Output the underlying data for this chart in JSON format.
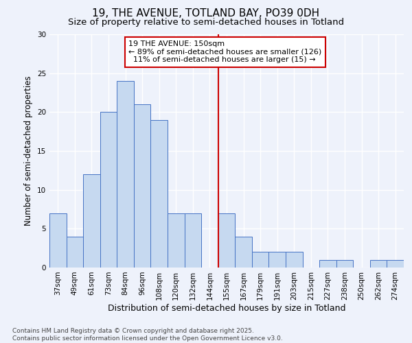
{
  "title1": "19, THE AVENUE, TOTLAND BAY, PO39 0DH",
  "title2": "Size of property relative to semi-detached houses in Totland",
  "xlabel": "Distribution of semi-detached houses by size in Totland",
  "ylabel": "Number of semi-detached properties",
  "bin_labels": [
    "37sqm",
    "49sqm",
    "61sqm",
    "73sqm",
    "84sqm",
    "96sqm",
    "108sqm",
    "120sqm",
    "132sqm",
    "144sqm",
    "155sqm",
    "167sqm",
    "179sqm",
    "191sqm",
    "203sqm",
    "215sqm",
    "227sqm",
    "238sqm",
    "250sqm",
    "262sqm",
    "274sqm"
  ],
  "bar_heights": [
    7,
    4,
    12,
    20,
    24,
    21,
    19,
    7,
    7,
    0,
    7,
    4,
    2,
    2,
    2,
    0,
    1,
    1,
    0,
    1,
    1
  ],
  "bar_color": "#c6d9f0",
  "bar_edge_color": "#4472c4",
  "vline_index": 10,
  "subject_label": "19 THE AVENUE: 150sqm",
  "pct_smaller": 89,
  "n_smaller": 126,
  "pct_larger": 11,
  "n_larger": 15,
  "annotation_box_color": "#ffffff",
  "annotation_box_edge": "#cc0000",
  "vline_color": "#cc0000",
  "ylim": [
    0,
    30
  ],
  "yticks": [
    0,
    5,
    10,
    15,
    20,
    25,
    30
  ],
  "background_color": "#eef2fb",
  "grid_color": "#ffffff",
  "footer": "Contains HM Land Registry data © Crown copyright and database right 2025.\nContains public sector information licensed under the Open Government Licence v3.0.",
  "title1_fontsize": 11,
  "title2_fontsize": 9.5,
  "xlabel_fontsize": 9,
  "ylabel_fontsize": 8.5,
  "tick_fontsize": 7.5,
  "annotation_fontsize": 8,
  "footer_fontsize": 6.5
}
